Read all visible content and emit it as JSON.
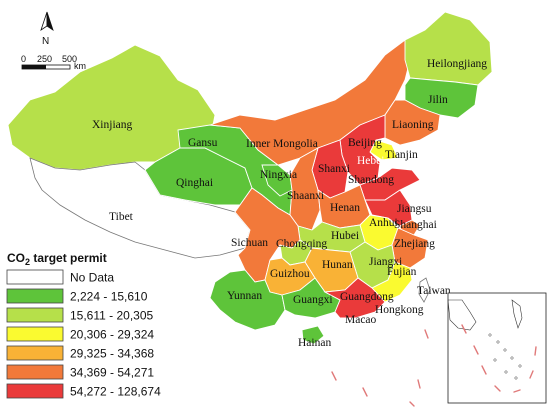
{
  "legend": {
    "title_prefix": "CO",
    "title_sub": "2",
    "title_suffix": " target permit",
    "items": [
      {
        "label": "No Data",
        "color": "#ffffff"
      },
      {
        "label": "2,224 - 15,610",
        "color": "#5ec43a"
      },
      {
        "label": "15,611 - 20,305",
        "color": "#b6e04a"
      },
      {
        "label": "20,306 - 29,324",
        "color": "#fafa30"
      },
      {
        "label": "29,325 - 34,368",
        "color": "#f9b236"
      },
      {
        "label": "34,369 - 54,271",
        "color": "#f2793a"
      },
      {
        "label": "54,272 - 128,674",
        "color": "#ea3a3a"
      }
    ]
  },
  "north_arrow": {
    "label": "N"
  },
  "scale_bar": {
    "t0": "0",
    "t1": "250",
    "t2": "500",
    "unit": "km"
  },
  "provinces": {
    "xinjiang": {
      "label": "Xinjiang",
      "class": 2
    },
    "tibet": {
      "label": "Tibet",
      "class": 0
    },
    "qinghai": {
      "label": "Qinghai",
      "class": 1
    },
    "gansu": {
      "label": "Gansu",
      "class": 1
    },
    "inner_mongolia": {
      "label": "Inner Mongolia",
      "class": 5
    },
    "heilongjiang": {
      "label": "Heilongjiang",
      "class": 2
    },
    "jilin": {
      "label": "Jilin",
      "class": 1
    },
    "liaoning": {
      "label": "Liaoning",
      "class": 5
    },
    "beijing": {
      "label": "Beijing",
      "class": 3
    },
    "tianjin": {
      "label": "Tianjin",
      "class": 3
    },
    "hebei": {
      "label": "Hebei",
      "class": 6
    },
    "shanxi": {
      "label": "Shanxi",
      "class": 6
    },
    "shandong": {
      "label": "Shandong",
      "class": 6
    },
    "ningxia": {
      "label": "Ningxia",
      "class": 1
    },
    "shaanxi": {
      "label": "Shaanxi",
      "class": 5
    },
    "henan": {
      "label": "Henan",
      "class": 5
    },
    "jiangsu": {
      "label": "Jiangsu",
      "class": 6
    },
    "anhui": {
      "label": "Anhui",
      "class": 3
    },
    "shanghai": {
      "label": "Shanghai",
      "class": 5
    },
    "hubei": {
      "label": "Hubei",
      "class": 2
    },
    "sichuan": {
      "label": "Sichuan",
      "class": 5
    },
    "chongqing": {
      "label": "Chongqing",
      "class": 2
    },
    "zhejiang": {
      "label": "Zhejiang",
      "class": 5
    },
    "jiangxi": {
      "label": "Jiangxi",
      "class": 2
    },
    "hunan": {
      "label": "Hunan",
      "class": 4
    },
    "guizhou": {
      "label": "Guizhou",
      "class": 4
    },
    "fujian": {
      "label": "Fujian",
      "class": 3
    },
    "yunnan": {
      "label": "Yunnan",
      "class": 1
    },
    "guangxi": {
      "label": "Guangxi",
      "class": 1
    },
    "guangdong": {
      "label": "Guangdong",
      "class": 6
    },
    "hainan": {
      "label": "Hainan",
      "class": 1
    },
    "taiwan": {
      "label": "Taiwan",
      "class": 0
    },
    "hongkong": {
      "label": "Hongkong",
      "class": 0
    },
    "macao": {
      "label": "Macao",
      "class": 0
    }
  }
}
